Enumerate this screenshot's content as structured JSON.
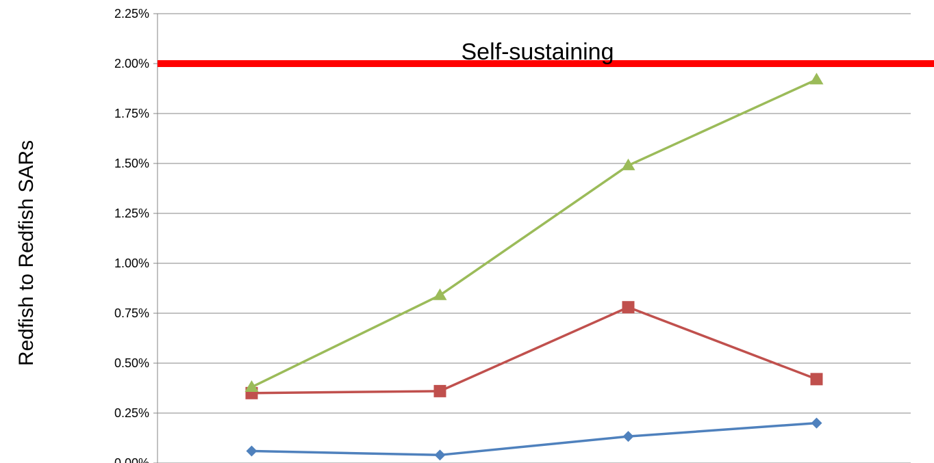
{
  "chart_data": {
    "type": "line",
    "title": "",
    "xlabel": "",
    "ylabel": "Redfish to Redfish SARs",
    "ylim": [
      0,
      0.0225
    ],
    "ytick_step": 0.0025,
    "y_format": "percent_2dp",
    "grid": true,
    "legend": "none",
    "x": [
      1,
      2,
      3,
      4
    ],
    "series": [
      {
        "color": "#4f81bd",
        "marker": "diamond",
        "values": [
          0.0006,
          0.0004,
          0.00133,
          0.002
        ]
      },
      {
        "color": "#c0504d",
        "marker": "square",
        "values": [
          0.0035,
          0.0036,
          0.0078,
          0.0042
        ]
      },
      {
        "color": "#9bbb59",
        "marker": "triangle",
        "values": [
          0.0038,
          0.0084,
          0.0149,
          0.0192
        ]
      }
    ],
    "reference_line": {
      "value": 0.02,
      "label": "Self-sustaining",
      "color": "#ff0000"
    }
  }
}
